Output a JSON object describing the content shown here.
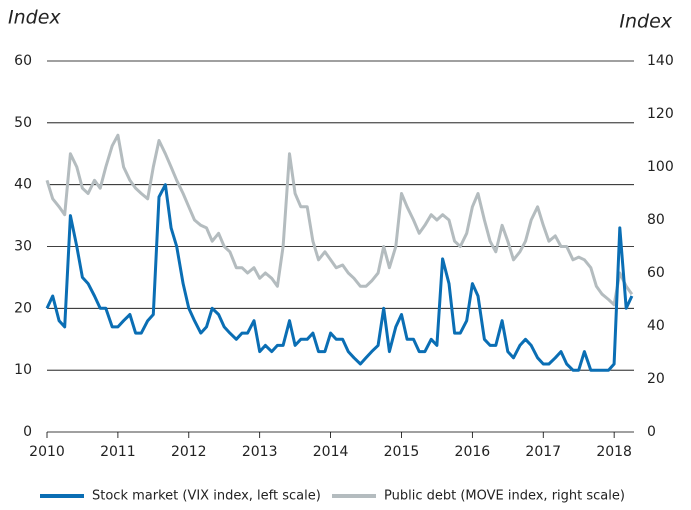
{
  "chart_data": {
    "type": "line",
    "y_label": "Index",
    "y2_label": "Index",
    "x": [
      2010,
      2010.08,
      2010.17,
      2010.25,
      2010.33,
      2010.42,
      2010.5,
      2010.58,
      2010.67,
      2010.75,
      2010.83,
      2010.92,
      2011,
      2011.08,
      2011.17,
      2011.25,
      2011.33,
      2011.42,
      2011.5,
      2011.58,
      2011.67,
      2011.75,
      2011.83,
      2011.92,
      2012,
      2012.08,
      2012.17,
      2012.25,
      2012.33,
      2012.42,
      2012.5,
      2012.58,
      2012.67,
      2012.75,
      2012.83,
      2012.92,
      2013,
      2013.08,
      2013.17,
      2013.25,
      2013.33,
      2013.42,
      2013.5,
      2013.58,
      2013.67,
      2013.75,
      2013.83,
      2013.92,
      2014,
      2014.08,
      2014.17,
      2014.25,
      2014.33,
      2014.42,
      2014.5,
      2014.58,
      2014.67,
      2014.75,
      2014.83,
      2014.92,
      2015,
      2015.08,
      2015.17,
      2015.25,
      2015.33,
      2015.42,
      2015.5,
      2015.58,
      2015.67,
      2015.75,
      2015.83,
      2015.92,
      2016,
      2016.08,
      2016.17,
      2016.25,
      2016.33,
      2016.42,
      2016.5,
      2016.58,
      2016.67,
      2016.75,
      2016.83,
      2016.92,
      2017,
      2017.08,
      2017.17,
      2017.25,
      2017.33,
      2017.42,
      2017.5,
      2017.58,
      2017.67,
      2017.75,
      2017.83,
      2017.92,
      2018,
      2018.08,
      2018.17,
      2018.25
    ],
    "series": [
      {
        "name": "Public debt (MOVE index, right scale)",
        "color": "#b4bcbf",
        "axis": "y2",
        "values": [
          95,
          88,
          85,
          82,
          105,
          100,
          92,
          90,
          95,
          92,
          100,
          108,
          112,
          100,
          95,
          92,
          90,
          88,
          100,
          110,
          105,
          100,
          95,
          90,
          85,
          80,
          78,
          77,
          72,
          75,
          70,
          68,
          62,
          62,
          60,
          62,
          58,
          60,
          58,
          55,
          70,
          105,
          90,
          85,
          85,
          72,
          65,
          68,
          65,
          62,
          63,
          60,
          58,
          55,
          55,
          57,
          60,
          70,
          62,
          70,
          90,
          85,
          80,
          75,
          78,
          82,
          80,
          82,
          80,
          72,
          70,
          75,
          85,
          90,
          80,
          72,
          68,
          78,
          72,
          65,
          68,
          72,
          80,
          85,
          78,
          72,
          74,
          70,
          70,
          65,
          66,
          65,
          62,
          55,
          52,
          50,
          48,
          60,
          55,
          52
        ]
      },
      {
        "name": "Stock market (VIX index, left scale)",
        "color": "#0a6eb4",
        "values": [
          20,
          22,
          18,
          17,
          35,
          30,
          25,
          24,
          22,
          20,
          20,
          17,
          17,
          18,
          19,
          16,
          16,
          18,
          19,
          38,
          40,
          33,
          30,
          24,
          20,
          18,
          16,
          17,
          20,
          19,
          17,
          16,
          15,
          16,
          16,
          18,
          13,
          14,
          13,
          14,
          14,
          18,
          14,
          15,
          15,
          16,
          13,
          13,
          16,
          15,
          15,
          13,
          12,
          11,
          12,
          13,
          14,
          20,
          13,
          17,
          19,
          15,
          15,
          13,
          13,
          15,
          14,
          28,
          24,
          16,
          16,
          18,
          24,
          22,
          15,
          14,
          14,
          18,
          13,
          12,
          14,
          15,
          14,
          12,
          11,
          11,
          12,
          13,
          11,
          10,
          10,
          13,
          10,
          10,
          10,
          10,
          11,
          33,
          20,
          22
        ]
      }
    ],
    "xlim": [
      2010,
      2018.28
    ],
    "xticks": [
      2010,
      2011,
      2012,
      2013,
      2014,
      2015,
      2016,
      2017,
      2018
    ],
    "ylim": [
      0,
      60
    ],
    "yticks": [
      0,
      10,
      20,
      30,
      40,
      50,
      60
    ],
    "y2lim": [
      0,
      140
    ],
    "y2ticks": [
      0,
      20,
      40,
      60,
      80,
      100,
      120,
      140
    ],
    "grid": true,
    "legend": "bottom"
  }
}
